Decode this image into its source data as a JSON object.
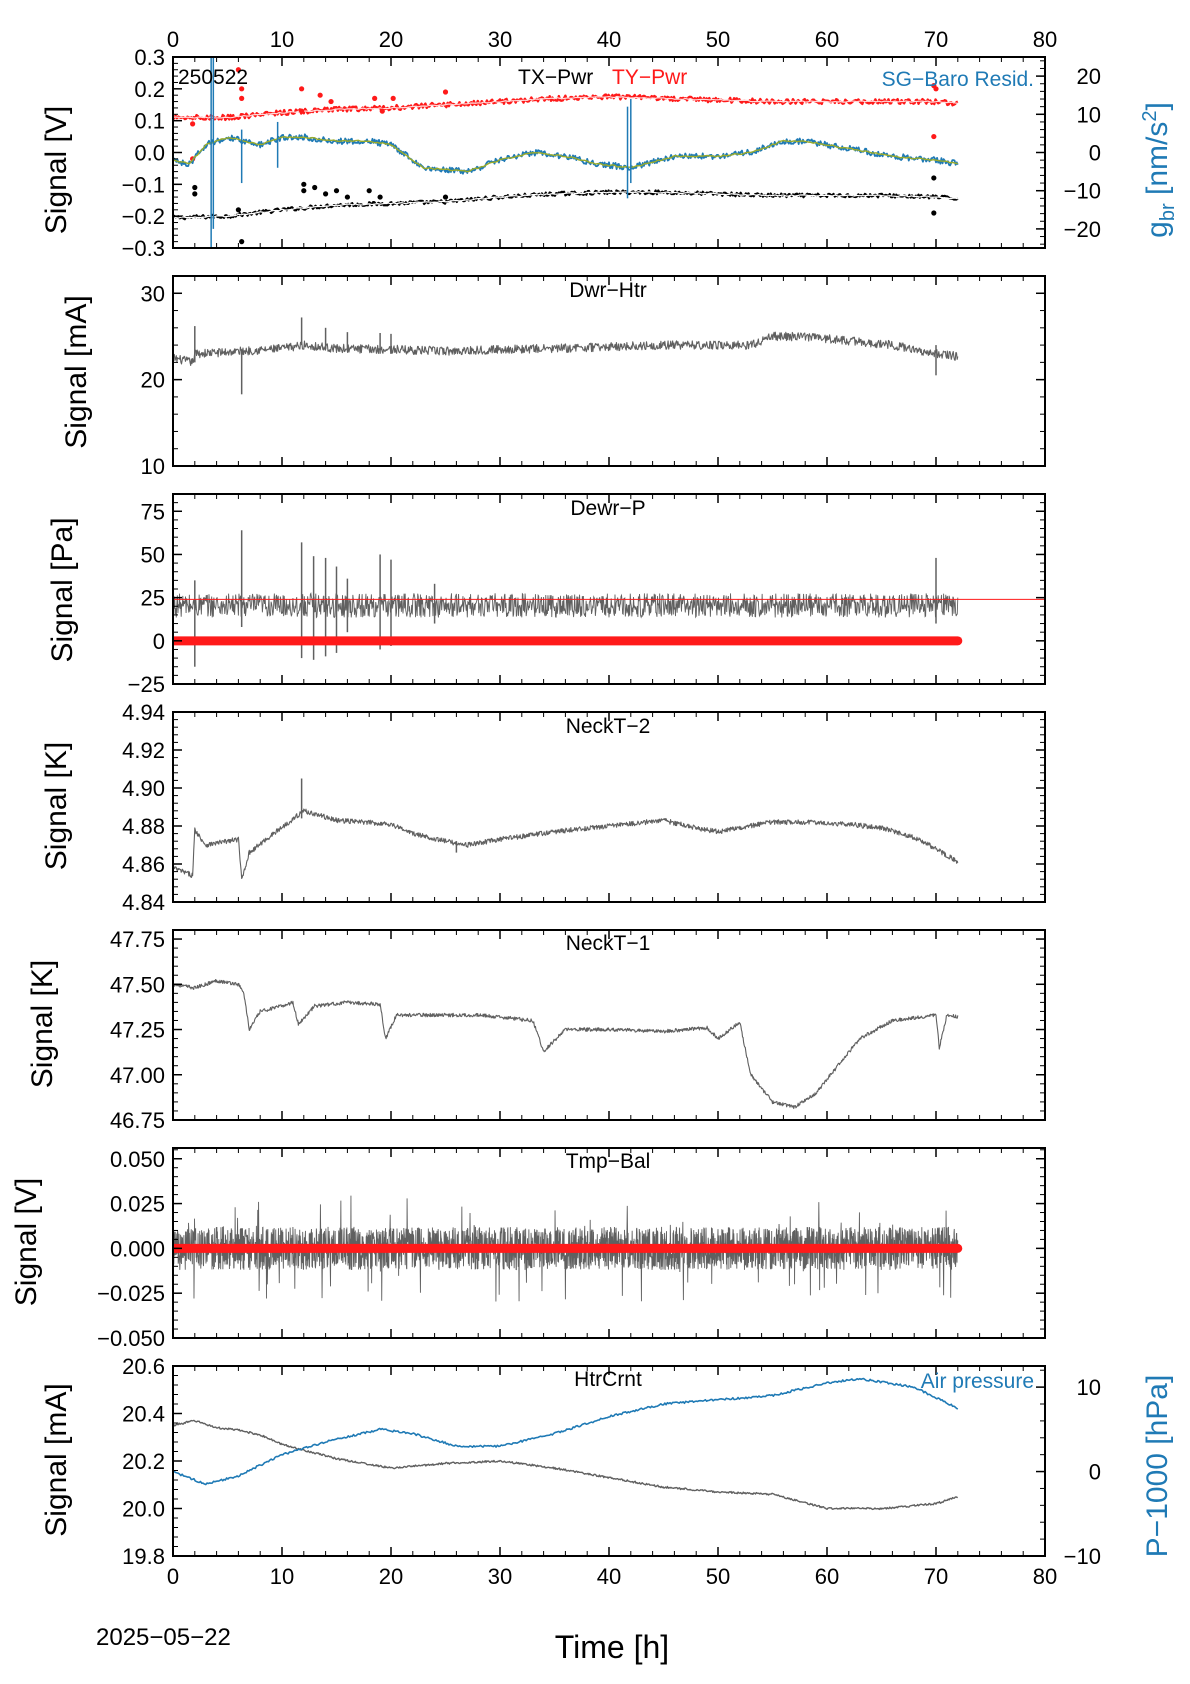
{
  "colors": {
    "black": "#000000",
    "gray": "#606060",
    "red": "#ff1a1a",
    "blue": "#1f7ab5",
    "green": "#9aab2a",
    "tx_black": "#111111",
    "tx_white": "#ffffff"
  },
  "footer": {
    "date_label": "2025−05−22",
    "xlabel": "Time [h]"
  },
  "chart_data": [
    {
      "id": "pwr",
      "type": "line",
      "tag": "250522",
      "title_parts": [
        "TX−Pwr",
        "TY−Pwr"
      ],
      "right_label": "SG−Baro Resid.",
      "ylabel": "Signal [V]",
      "y2label_main": "g",
      "y2label_sub": "br",
      "y2label_unit": " [nm/s",
      "y2label_sup": "2",
      "y2label_end": "]",
      "xlim": [
        0,
        80
      ],
      "ylim": [
        -0.3,
        0.3
      ],
      "y2lim": [
        -25,
        25
      ],
      "xticks": [
        0,
        10,
        20,
        30,
        40,
        50,
        60,
        70,
        80
      ],
      "yticks": [
        -0.3,
        -0.2,
        -0.1,
        0.0,
        0.1,
        0.2,
        0.3
      ],
      "ytick_labels": [
        "−0.3",
        "−0.2",
        "−0.1",
        "0.0",
        "0.1",
        "0.2",
        "0.3"
      ],
      "y2ticks": [
        -20,
        -10,
        0,
        10,
        20
      ],
      "y2tick_labels": [
        "−20",
        "−10",
        "0",
        "10",
        "20"
      ],
      "series": [
        {
          "name": "TX−Pwr",
          "axis": "left",
          "knots": [
            [
              0,
              -0.205
            ],
            [
              5,
              -0.2
            ],
            [
              10,
              -0.18
            ],
            [
              15,
              -0.165
            ],
            [
              20,
              -0.16
            ],
            [
              25,
              -0.155
            ],
            [
              30,
              -0.14
            ],
            [
              35,
              -0.13
            ],
            [
              40,
              -0.125
            ],
            [
              45,
              -0.125
            ],
            [
              50,
              -0.13
            ],
            [
              55,
              -0.135
            ],
            [
              60,
              -0.135
            ],
            [
              65,
              -0.135
            ],
            [
              70,
              -0.14
            ],
            [
              72,
              -0.145
            ]
          ]
        },
        {
          "name": "TY−Pwr",
          "axis": "left",
          "knots": [
            [
              0,
              0.11
            ],
            [
              5,
              0.11
            ],
            [
              10,
              0.125
            ],
            [
              15,
              0.135
            ],
            [
              20,
              0.14
            ],
            [
              25,
              0.15
            ],
            [
              30,
              0.16
            ],
            [
              35,
              0.17
            ],
            [
              40,
              0.175
            ],
            [
              45,
              0.17
            ],
            [
              50,
              0.165
            ],
            [
              55,
              0.16
            ],
            [
              60,
              0.16
            ],
            [
              65,
              0.16
            ],
            [
              70,
              0.16
            ],
            [
              72,
              0.155
            ]
          ]
        },
        {
          "name": "SG−Baro Resid.",
          "axis": "right",
          "knots": [
            [
              0,
              -2
            ],
            [
              1.5,
              -3
            ],
            [
              3,
              2
            ],
            [
              5,
              4
            ],
            [
              8,
              2
            ],
            [
              10,
              4
            ],
            [
              12,
              4
            ],
            [
              15,
              3
            ],
            [
              18,
              3
            ],
            [
              20,
              2
            ],
            [
              23,
              -4
            ],
            [
              27,
              -5
            ],
            [
              30,
              -2
            ],
            [
              33,
              0
            ],
            [
              36,
              -1
            ],
            [
              39,
              -3
            ],
            [
              42,
              -4
            ],
            [
              46,
              -1
            ],
            [
              50,
              -1
            ],
            [
              53,
              0
            ],
            [
              56,
              3
            ],
            [
              58,
              3
            ],
            [
              62,
              1
            ],
            [
              66,
              -1
            ],
            [
              70,
              -2
            ],
            [
              72,
              -3
            ]
          ]
        }
      ]
    },
    {
      "id": "dwr",
      "type": "line",
      "title": "Dwr−Htr",
      "ylabel": "Signal [mA]",
      "xlim": [
        0,
        80
      ],
      "ylim": [
        10,
        32
      ],
      "xticks": [
        0,
        10,
        20,
        30,
        40,
        50,
        60,
        70,
        80
      ],
      "yticks": [
        10,
        20,
        30
      ],
      "ytick_labels": [
        "10",
        "20",
        "30"
      ],
      "series": [
        {
          "name": "Dwr−Htr",
          "knots": [
            [
              0,
              22.5
            ],
            [
              1.8,
              22
            ],
            [
              2,
              23
            ],
            [
              5,
              23.2
            ],
            [
              10,
              23.6
            ],
            [
              12,
              24
            ],
            [
              15,
              23.6
            ],
            [
              20,
              23.5
            ],
            [
              25,
              23.3
            ],
            [
              30,
              23.5
            ],
            [
              35,
              23.6
            ],
            [
              40,
              23.8
            ],
            [
              45,
              24
            ],
            [
              50,
              24
            ],
            [
              53,
              24
            ],
            [
              55,
              25
            ],
            [
              58,
              25
            ],
            [
              62,
              24.5
            ],
            [
              66,
              24
            ],
            [
              70,
              23
            ],
            [
              72,
              22.7
            ]
          ]
        }
      ]
    },
    {
      "id": "dewr",
      "type": "line",
      "title": "Dewr−P",
      "ylabel": "Signal [Pa]",
      "xlim": [
        0,
        80
      ],
      "ylim": [
        -25,
        85
      ],
      "xticks": [
        0,
        10,
        20,
        30,
        40,
        50,
        60,
        70,
        80
      ],
      "yticks": [
        -25,
        0,
        25,
        50,
        75
      ],
      "ytick_labels": [
        "−25",
        "0",
        "25",
        "50",
        "75"
      ],
      "threshold": 24,
      "series": [
        {
          "name": "Dewr−P",
          "knots": [
            [
              0,
              21
            ],
            [
              72,
              21
            ]
          ]
        },
        {
          "name": "zero",
          "knots": [
            [
              0,
              0
            ],
            [
              72,
              0
            ]
          ]
        }
      ]
    },
    {
      "id": "neck2",
      "type": "line",
      "title": "NeckT−2",
      "ylabel": "Signal [K]",
      "xlim": [
        0,
        80
      ],
      "ylim": [
        4.84,
        4.94
      ],
      "xticks": [
        0,
        10,
        20,
        30,
        40,
        50,
        60,
        70,
        80
      ],
      "yticks": [
        4.84,
        4.86,
        4.88,
        4.9,
        4.92,
        4.94
      ],
      "ytick_labels": [
        "4.84",
        "4.86",
        "4.88",
        "4.90",
        "4.92",
        "4.94"
      ],
      "series": [
        {
          "name": "NeckT−2",
          "knots": [
            [
              0,
              4.858
            ],
            [
              1.8,
              4.854
            ],
            [
              2,
              4.878
            ],
            [
              3,
              4.87
            ],
            [
              6,
              4.873
            ],
            [
              6.3,
              4.852
            ],
            [
              7,
              4.866
            ],
            [
              9,
              4.875
            ],
            [
              12,
              4.888
            ],
            [
              15,
              4.883
            ],
            [
              20,
              4.881
            ],
            [
              22,
              4.876
            ],
            [
              25,
              4.872
            ],
            [
              27,
              4.87
            ],
            [
              30,
              4.873
            ],
            [
              35,
              4.877
            ],
            [
              40,
              4.88
            ],
            [
              45,
              4.883
            ],
            [
              48,
              4.879
            ],
            [
              50,
              4.877
            ],
            [
              55,
              4.882
            ],
            [
              58,
              4.882
            ],
            [
              62,
              4.881
            ],
            [
              65,
              4.879
            ],
            [
              68,
              4.874
            ],
            [
              70,
              4.868
            ],
            [
              72,
              4.861
            ]
          ]
        }
      ]
    },
    {
      "id": "neck1",
      "type": "line",
      "title": "NeckT−1",
      "ylabel": "Signal [K]",
      "xlim": [
        0,
        80
      ],
      "ylim": [
        46.75,
        47.8
      ],
      "xticks": [
        0,
        10,
        20,
        30,
        40,
        50,
        60,
        70,
        80
      ],
      "yticks": [
        46.75,
        47.0,
        47.25,
        47.5,
        47.75
      ],
      "ytick_labels": [
        "46.75",
        "47.00",
        "47.25",
        "47.50",
        "47.75"
      ],
      "series": [
        {
          "name": "NeckT−1",
          "knots": [
            [
              0,
              47.5
            ],
            [
              2,
              47.48
            ],
            [
              4,
              47.52
            ],
            [
              6,
              47.5
            ],
            [
              6.5,
              47.45
            ],
            [
              7,
              47.25
            ],
            [
              8,
              47.35
            ],
            [
              10,
              47.38
            ],
            [
              11,
              47.4
            ],
            [
              11.5,
              47.28
            ],
            [
              13,
              47.38
            ],
            [
              16,
              47.4
            ],
            [
              19,
              47.39
            ],
            [
              19.5,
              47.2
            ],
            [
              20.5,
              47.33
            ],
            [
              24,
              47.33
            ],
            [
              28,
              47.33
            ],
            [
              33,
              47.3
            ],
            [
              34,
              47.13
            ],
            [
              36,
              47.25
            ],
            [
              40,
              47.25
            ],
            [
              45,
              47.24
            ],
            [
              49,
              47.26
            ],
            [
              50,
              47.2
            ],
            [
              52,
              47.29
            ],
            [
              52.3,
              47.2
            ],
            [
              53,
              47.0
            ],
            [
              55,
              46.85
            ],
            [
              57,
              46.82
            ],
            [
              59,
              46.9
            ],
            [
              61,
              47.05
            ],
            [
              63,
              47.2
            ],
            [
              66,
              47.3
            ],
            [
              70,
              47.33
            ],
            [
              70.3,
              47.15
            ],
            [
              71,
              47.33
            ],
            [
              72,
              47.32
            ]
          ]
        }
      ]
    },
    {
      "id": "tmp",
      "type": "line",
      "title": "Tmp−Bal",
      "ylabel": "Signal [V]",
      "xlim": [
        0,
        80
      ],
      "ylim": [
        -0.05,
        0.056
      ],
      "xticks": [
        0,
        10,
        20,
        30,
        40,
        50,
        60,
        70,
        80
      ],
      "yticks": [
        -0.05,
        -0.025,
        0,
        0.025,
        0.05
      ],
      "ytick_labels": [
        "−0.050",
        "−0.025",
        "0.000",
        "0.025",
        "0.050"
      ],
      "series": [
        {
          "name": "Tmp−Bal",
          "knots": [
            [
              0,
              0
            ],
            [
              72,
              0
            ]
          ]
        },
        {
          "name": "zero",
          "knots": [
            [
              0,
              0
            ],
            [
              72,
              0
            ]
          ]
        }
      ]
    },
    {
      "id": "htr",
      "type": "line",
      "title": "HtrCrnt",
      "right_label": "Air pressure",
      "ylabel": "Signal [mA]",
      "y2label": "P−1000 [hPa]",
      "xlim": [
        0,
        80
      ],
      "ylim": [
        19.8,
        20.6
      ],
      "y2lim": [
        -10,
        12.5
      ],
      "xticks": [
        0,
        10,
        20,
        30,
        40,
        50,
        60,
        70,
        80
      ],
      "xtick_labels": [
        "0",
        "10",
        "20",
        "30",
        "40",
        "50",
        "60",
        "70",
        "80"
      ],
      "yticks": [
        19.8,
        20.0,
        20.2,
        20.4,
        20.6
      ],
      "ytick_labels": [
        "19.8",
        "20.0",
        "20.2",
        "20.4",
        "20.6"
      ],
      "y2ticks": [
        -10,
        0,
        10
      ],
      "y2tick_labels": [
        "−10",
        "0",
        "10"
      ],
      "series": [
        {
          "name": "HtrCrnt",
          "axis": "left",
          "knots": [
            [
              0,
              20.35
            ],
            [
              2,
              20.37
            ],
            [
              4,
              20.34
            ],
            [
              6,
              20.33
            ],
            [
              8,
              20.31
            ],
            [
              10,
              20.27
            ],
            [
              15,
              20.21
            ],
            [
              20,
              20.17
            ],
            [
              25,
              20.19
            ],
            [
              30,
              20.2
            ],
            [
              35,
              20.17
            ],
            [
              40,
              20.13
            ],
            [
              45,
              20.09
            ],
            [
              50,
              20.07
            ],
            [
              55,
              20.06
            ],
            [
              60,
              20.0
            ],
            [
              65,
              20.0
            ],
            [
              70,
              20.02
            ],
            [
              72,
              20.05
            ]
          ]
        },
        {
          "name": "Air pressure",
          "axis": "right",
          "knots": [
            [
              0,
              0
            ],
            [
              3,
              -1.5
            ],
            [
              6,
              -0.5
            ],
            [
              10,
              2
            ],
            [
              14,
              3.5
            ],
            [
              19,
              5
            ],
            [
              22,
              4.5
            ],
            [
              26,
              3
            ],
            [
              30,
              3
            ],
            [
              35,
              4.5
            ],
            [
              40,
              6.5
            ],
            [
              45,
              8
            ],
            [
              50,
              8.5
            ],
            [
              55,
              9
            ],
            [
              60,
              10.5
            ],
            [
              63,
              11
            ],
            [
              68,
              10
            ],
            [
              72,
              7.5
            ]
          ]
        }
      ]
    }
  ]
}
